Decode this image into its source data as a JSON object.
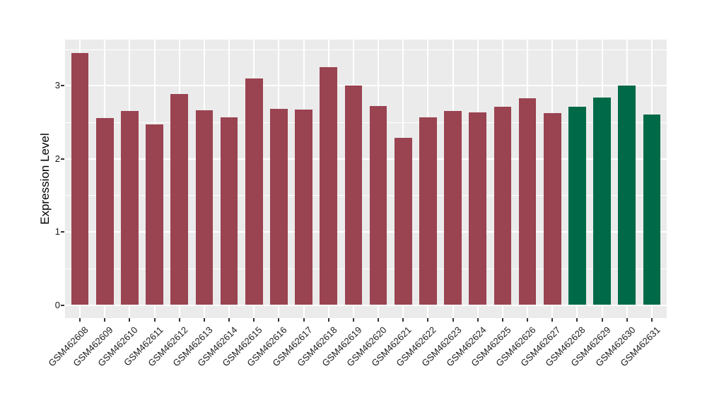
{
  "figure": {
    "background": "#FFFFFF"
  },
  "chart_data": {
    "type": "bar",
    "title": "",
    "xlabel": "",
    "ylabel": "Expression Level",
    "categories": [
      "GSM462608",
      "GSM462609",
      "GSM462610",
      "GSM462611",
      "GSM462612",
      "GSM462613",
      "GSM462614",
      "GSM462615",
      "GSM462616",
      "GSM462617",
      "GSM462618",
      "GSM462619",
      "GSM462620",
      "GSM462621",
      "GSM462622",
      "GSM462623",
      "GSM462624",
      "GSM462625",
      "GSM462626",
      "GSM462627",
      "GSM462628",
      "GSM462629",
      "GSM462630",
      "GSM462631"
    ],
    "values": [
      3.45,
      2.56,
      2.65,
      2.47,
      2.89,
      2.66,
      2.57,
      3.1,
      2.68,
      2.67,
      3.25,
      3.0,
      2.72,
      2.29,
      2.57,
      2.65,
      2.64,
      2.71,
      2.83,
      2.63,
      2.71,
      2.84,
      3.0,
      2.61
    ],
    "bar_colors": [
      "#9A4351",
      "#9A4351",
      "#9A4351",
      "#9A4351",
      "#9A4351",
      "#9A4351",
      "#9A4351",
      "#9A4351",
      "#9A4351",
      "#9A4351",
      "#9A4351",
      "#9A4351",
      "#9A4351",
      "#9A4351",
      "#9A4351",
      "#9A4351",
      "#9A4351",
      "#9A4351",
      "#9A4351",
      "#9A4351",
      "#006A48",
      "#006A48",
      "#006A48",
      "#006A48"
    ],
    "color_groups": {
      "maroon": "#9A4351",
      "green": "#006A48"
    },
    "ytick_labels": [
      "0",
      "1",
      "2",
      "3"
    ],
    "yticks": [
      0,
      1,
      2,
      3
    ],
    "minor_yticks": [
      0.5,
      1.5,
      2.5,
      3.5
    ],
    "ylim": [
      -0.18,
      3.63
    ],
    "grid": "major+minor, white on grey panel",
    "panel_background": "#EBEBEB",
    "grid_color": "#FFFFFF",
    "legend_position": "none"
  }
}
